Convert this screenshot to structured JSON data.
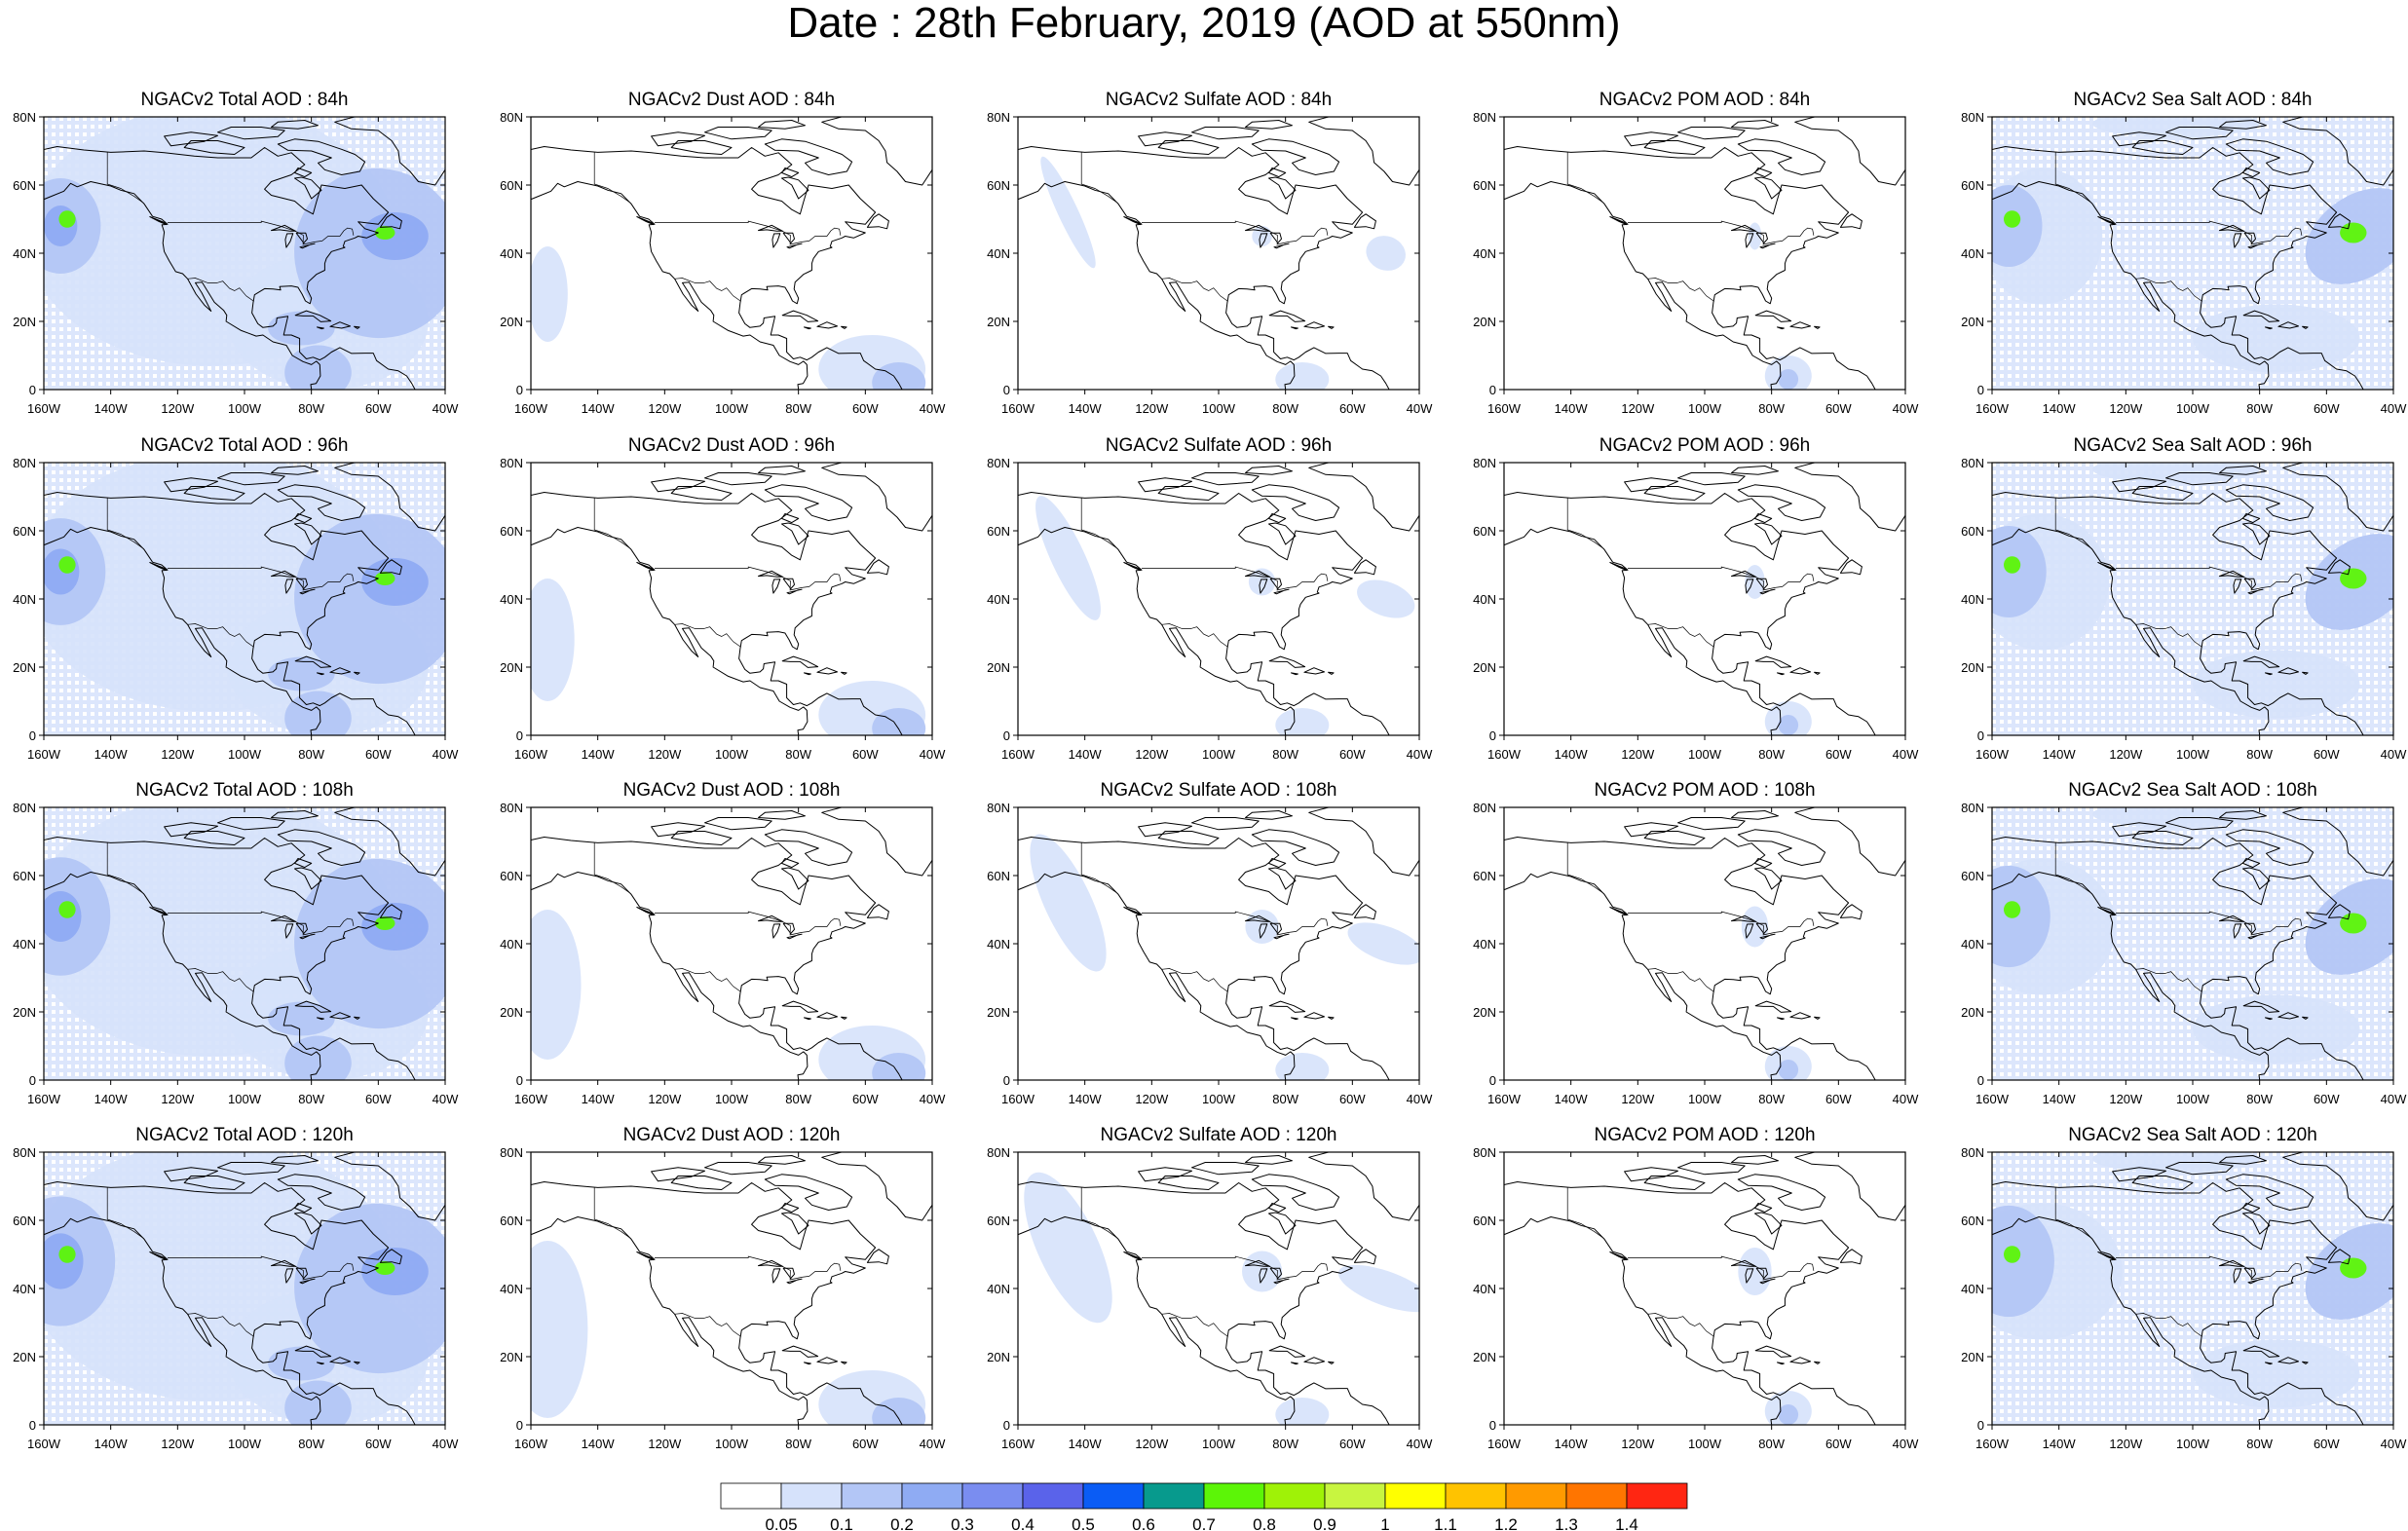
{
  "title": "Date : 28th February, 2019 (AOD at 550nm)",
  "products": [
    "Total AOD",
    "Dust AOD",
    "Sulfate AOD",
    "POM AOD",
    "Sea Salt AOD"
  ],
  "panel_titles": [
    [
      "NGACv2 Total AOD : 84h",
      "NGACv2 Dust AOD : 84h",
      "NGACv2 Sulfate AOD : 84h",
      "NGACv2 POM AOD : 84h",
      "NGACv2 Sea Salt AOD : 84h"
    ],
    [
      "NGACv2 Total AOD : 96h",
      "NGACv2 Dust AOD : 96h",
      "NGACv2 Sulfate AOD : 96h",
      "NGACv2 POM AOD : 96h",
      "NGACv2 Sea Salt AOD : 96h"
    ],
    [
      "NGACv2 Total AOD : 108h",
      "NGACv2 Dust AOD : 108h",
      "NGACv2 Sulfate AOD : 108h",
      "NGACv2 POM AOD : 108h",
      "NGACv2 Sea Salt AOD : 108h"
    ],
    [
      "NGACv2 Total AOD : 120h",
      "NGACv2 Dust AOD : 120h",
      "NGACv2 Sulfate AOD : 120h",
      "NGACv2 POM AOD : 120h",
      "NGACv2 Sea Salt  AOD : 120h"
    ]
  ],
  "axes": {
    "lon_ticks": [
      "160W",
      "140W",
      "120W",
      "100W",
      "80W",
      "60W",
      "40W"
    ],
    "lat_ticks": [
      "0",
      "20N",
      "40N",
      "60N",
      "80N"
    ],
    "lon_range": [
      -160,
      -40
    ],
    "lat_range": [
      0,
      80
    ]
  },
  "colorbar": {
    "labels": [
      "0.05",
      "0.1",
      "0.2",
      "0.3",
      "0.4",
      "0.5",
      "0.6",
      "0.7",
      "0.8",
      "0.9",
      "1",
      "1.1",
      "1.2",
      "1.3",
      "1.4"
    ],
    "colors": [
      "#ffffff",
      "#d6e2fb",
      "#b3c6f6",
      "#8fabf3",
      "#7a8df0",
      "#5a63ea",
      "#0a5cf5",
      "#079a8d",
      "#5cf507",
      "#9ff207",
      "#c8f540",
      "#ffff00",
      "#ffc300",
      "#ff9a00",
      "#ff7500",
      "#ff2612"
    ]
  }
}
